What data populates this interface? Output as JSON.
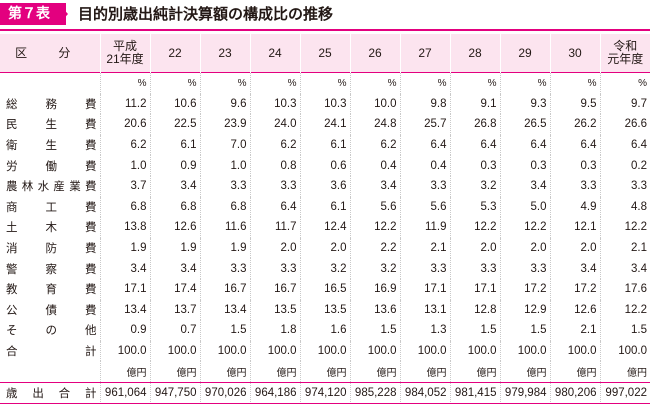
{
  "header": {
    "badge": "第７表",
    "title": "目的別歳出純計決算額の構成比の推移"
  },
  "colors": {
    "accent": "#e3007f",
    "header_bg": "#fce4ef"
  },
  "table": {
    "corner_label": "区 分",
    "columns": [
      [
        "平成",
        "21年度"
      ],
      [
        "22"
      ],
      [
        "23"
      ],
      [
        "24"
      ],
      [
        "25"
      ],
      [
        "26"
      ],
      [
        "27"
      ],
      [
        "28"
      ],
      [
        "29"
      ],
      [
        "30"
      ],
      [
        "令和",
        "元年度"
      ]
    ],
    "percent_unit": [
      "%",
      "%",
      "%",
      "%",
      "%",
      "%",
      "%",
      "%",
      "%",
      "%",
      "%"
    ],
    "rows": [
      {
        "label": "総務費",
        "values": [
          "11.2",
          "10.6",
          "9.6",
          "10.3",
          "10.3",
          "10.0",
          "9.8",
          "9.1",
          "9.3",
          "9.5",
          "9.7"
        ]
      },
      {
        "label": "民生費",
        "values": [
          "20.6",
          "22.5",
          "23.9",
          "24.0",
          "24.1",
          "24.8",
          "25.7",
          "26.8",
          "26.5",
          "26.2",
          "26.6"
        ]
      },
      {
        "label": "衛生費",
        "values": [
          "6.2",
          "6.1",
          "7.0",
          "6.2",
          "6.1",
          "6.2",
          "6.4",
          "6.4",
          "6.4",
          "6.4",
          "6.4"
        ]
      },
      {
        "label": "労働費",
        "values": [
          "1.0",
          "0.9",
          "1.0",
          "0.8",
          "0.6",
          "0.4",
          "0.4",
          "0.3",
          "0.3",
          "0.3",
          "0.2"
        ]
      },
      {
        "label": "農林水産業費",
        "values": [
          "3.7",
          "3.4",
          "3.3",
          "3.3",
          "3.6",
          "3.4",
          "3.3",
          "3.2",
          "3.4",
          "3.3",
          "3.3"
        ]
      },
      {
        "label": "商工費",
        "values": [
          "6.8",
          "6.8",
          "6.8",
          "6.4",
          "6.1",
          "5.6",
          "5.6",
          "5.3",
          "5.0",
          "4.9",
          "4.8"
        ]
      },
      {
        "label": "土木費",
        "values": [
          "13.8",
          "12.6",
          "11.6",
          "11.7",
          "12.4",
          "12.2",
          "11.9",
          "12.2",
          "12.2",
          "12.1",
          "12.2"
        ]
      },
      {
        "label": "消防費",
        "values": [
          "1.9",
          "1.9",
          "1.9",
          "2.0",
          "2.0",
          "2.2",
          "2.1",
          "2.0",
          "2.0",
          "2.0",
          "2.1"
        ]
      },
      {
        "label": "警察費",
        "values": [
          "3.4",
          "3.4",
          "3.3",
          "3.3",
          "3.2",
          "3.2",
          "3.3",
          "3.3",
          "3.3",
          "3.4",
          "3.4"
        ]
      },
      {
        "label": "教育費",
        "values": [
          "17.1",
          "17.4",
          "16.7",
          "16.7",
          "16.5",
          "16.9",
          "17.1",
          "17.1",
          "17.2",
          "17.2",
          "17.6"
        ]
      },
      {
        "label": "公債費",
        "values": [
          "13.4",
          "13.7",
          "13.4",
          "13.5",
          "13.5",
          "13.6",
          "13.1",
          "12.8",
          "12.9",
          "12.6",
          "12.2"
        ]
      },
      {
        "label": "その他",
        "values": [
          "0.9",
          "0.7",
          "1.5",
          "1.8",
          "1.6",
          "1.5",
          "1.3",
          "1.5",
          "1.5",
          "2.1",
          "1.5"
        ]
      },
      {
        "label": "合計",
        "values": [
          "100.0",
          "100.0",
          "100.0",
          "100.0",
          "100.0",
          "100.0",
          "100.0",
          "100.0",
          "100.0",
          "100.0",
          "100.0"
        ]
      }
    ],
    "yen_unit": [
      "億円",
      "億円",
      "億円",
      "億円",
      "億円",
      "億円",
      "億円",
      "億円",
      "億円",
      "億円",
      "億円"
    ],
    "total_row": {
      "label": "歳出合計",
      "values": [
        "961,064",
        "947,750",
        "970,026",
        "964,186",
        "974,120",
        "985,228",
        "984,052",
        "981,415",
        "979,984",
        "980,206",
        "997,022"
      ]
    }
  }
}
